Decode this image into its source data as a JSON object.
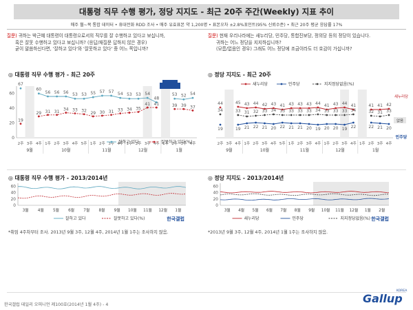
{
  "header": {
    "title": "대통령 직무 수행 평가, 정당 지지도 - 최근 20주 주간(Weekly) 지표 추이",
    "subtitle": "매주 월~목 통합 데이터 • 휴대전화 RDD 조사 • 매주 유효표본 약 1,200명 • 표본오차 ±2.8%포인트(95% 신뢰수준) • 최근 20주 평균 응답률 17%"
  },
  "left_question": {
    "label": "질문)",
    "lines": [
      "귀하는 박근혜 대통령이 대통령으로서의 직무를 잘 수행하고 있다고 보십니까,",
      "혹은 잘못 수행하고 있다고 보십니까? (응답/재질문 답하지 않은 경우)",
      "굳이 말씀하신다면, '잘하고 있다'와 '잘못하고 있다' 중 어느 쪽입니까?"
    ]
  },
  "right_question": {
    "label": "질문)",
    "lines": [
      "현재 우리나라에는 새누리당, 민주당, 통합진보당, 정의당 등의 정당이 있습니다.",
      "귀하는 어느 정당을 지지하십니까?",
      "(모름/없음인 경우) 그래도 어느 정당에 조금이라도 더 호감이 가십니까?"
    ]
  },
  "sections": {
    "left_top": "◎ 대통령 직무 수행 평가 - 최근 20주",
    "right_top": "◎ 정당 지지도 - 최근 20주",
    "left_bottom": "◎ 대통령 직무 수행 평가 - 2013/2014년",
    "right_bottom": "◎ 정당 지지도 - 2013/2014년"
  },
  "notes": {
    "left": "*취임 4주차부터 조사. 2013년 9월 3주, 12월 4주, 2014년 1월 1주는 조사하지 않음.",
    "right": "*2013년 9월 3주, 12월 4주, 2014년 1월 1주는 조사하지 않음."
  },
  "footer": "한국갤럽 데일리 오피니언 제100호(2014년 1월 4주) - 4",
  "logo": {
    "text": "Gallup",
    "korea": "KOREA",
    "small_mark": "한국갤럽"
  },
  "chart_data": [
    {
      "type": "line",
      "id": "approval-20w",
      "ylim": [
        0,
        70
      ],
      "yticks": [
        0,
        20,
        40,
        60
      ],
      "x_weeks": [
        "2주",
        "3주",
        "4주",
        "1주",
        "2주",
        "3주",
        "4주",
        "5주",
        "1주",
        "2주",
        "3주",
        "4주",
        "1주",
        "2주",
        "3주",
        "4주",
        "1주",
        "2주",
        "3주",
        "4주"
      ],
      "x_months": [
        {
          "label": "9월",
          "from": 0,
          "to": 2
        },
        {
          "label": "10월",
          "from": 3,
          "to": 7
        },
        {
          "label": "11월",
          "from": 8,
          "to": 11
        },
        {
          "label": "12월",
          "from": 12,
          "to": 15
        },
        {
          "label": "1월",
          "from": 16,
          "to": 19
        }
      ],
      "gaps": [
        1,
        14,
        16
      ],
      "series": [
        {
          "name": "잘하고 있다",
          "color": "#5aa6bf",
          "dash": false,
          "values": [
            67,
            null,
            60,
            56,
            56,
            56,
            53,
            53,
            55,
            57,
            57,
            54,
            53,
            53,
            54,
            48,
            null,
            53,
            52,
            54
          ]
        },
        {
          "name": "잘못하고 있다(%)",
          "color": "#c0262d",
          "dash": true,
          "values": [
            19,
            null,
            29,
            31,
            31,
            34,
            33,
            32,
            29,
            30,
            31,
            33,
            34,
            35,
            41,
            41,
            null,
            39,
            39,
            37
          ]
        }
      ]
    },
    {
      "type": "line",
      "id": "party-20w",
      "ylim": [
        0,
        70
      ],
      "x_weeks": [
        "2주",
        "3주",
        "4주",
        "1주",
        "2주",
        "3주",
        "4주",
        "5주",
        "1주",
        "2주",
        "3주",
        "4주",
        "1주",
        "2주",
        "3주",
        "4주",
        "1주",
        "2주",
        "3주",
        "4주"
      ],
      "x_months": [
        {
          "label": "9월",
          "from": 0,
          "to": 2
        },
        {
          "label": "10월",
          "from": 3,
          "to": 7
        },
        {
          "label": "11월",
          "from": 8,
          "to": 11
        },
        {
          "label": "12월",
          "from": 12,
          "to": 15
        },
        {
          "label": "1월",
          "from": 16,
          "to": 19
        }
      ],
      "gaps": [
        1,
        14,
        16
      ],
      "series": [
        {
          "name": "새누리당",
          "color": "#c0262d",
          "dash": false,
          "values": [
            44,
            null,
            45,
            43,
            44,
            42,
            43,
            41,
            43,
            43,
            43,
            44,
            41,
            43,
            44,
            41,
            null,
            41,
            41,
            42
          ]
        },
        {
          "name": "민주당",
          "color": "#1f4e9c",
          "dash": false,
          "values": [
            19,
            null,
            19,
            21,
            22,
            21,
            20,
            22,
            21,
            21,
            20,
            19,
            20,
            20,
            19,
            22,
            null,
            22,
            21,
            20
          ]
        },
        {
          "name": "지지정당없음(%)",
          "color": "#444444",
          "dash": true,
          "values": [
            34,
            null,
            33,
            31,
            32,
            33,
            34,
            33,
            33,
            33,
            33,
            34,
            33,
            33,
            33,
            34,
            null,
            32,
            31,
            33
          ]
        }
      ],
      "side_labels": [
        "새누리당",
        "없음",
        "민주당"
      ]
    },
    {
      "type": "line",
      "id": "approval-2013-2014",
      "ylim": [
        0,
        70
      ],
      "yticks": [
        0,
        20,
        40,
        60
      ],
      "x_months": [
        "3월",
        "4월",
        "5월",
        "6월",
        "7월",
        "8월",
        "9월",
        "10월",
        "11월",
        "12월",
        "1월"
      ],
      "series": [
        {
          "name": "잘하고 있다",
          "color": "#5aa6bf",
          "dash": false
        },
        {
          "name": "잘못하고 있다(%)",
          "color": "#c0262d",
          "dash": true
        }
      ]
    },
    {
      "type": "line",
      "id": "party-2013-2014",
      "ylim": [
        0,
        70
      ],
      "yticks": [
        0,
        20,
        40,
        60
      ],
      "x_months": [
        "3월",
        "4월",
        "5월",
        "6월",
        "7월",
        "8월",
        "9월",
        "10월",
        "11월",
        "12월",
        "1월",
        "2월"
      ],
      "series": [
        {
          "name": "새누리당",
          "color": "#c0262d",
          "dash": false
        },
        {
          "name": "민주당",
          "color": "#1f4e9c",
          "dash": false
        },
        {
          "name": "지지정당없음(%)",
          "color": "#444444",
          "dash": true
        }
      ]
    }
  ]
}
